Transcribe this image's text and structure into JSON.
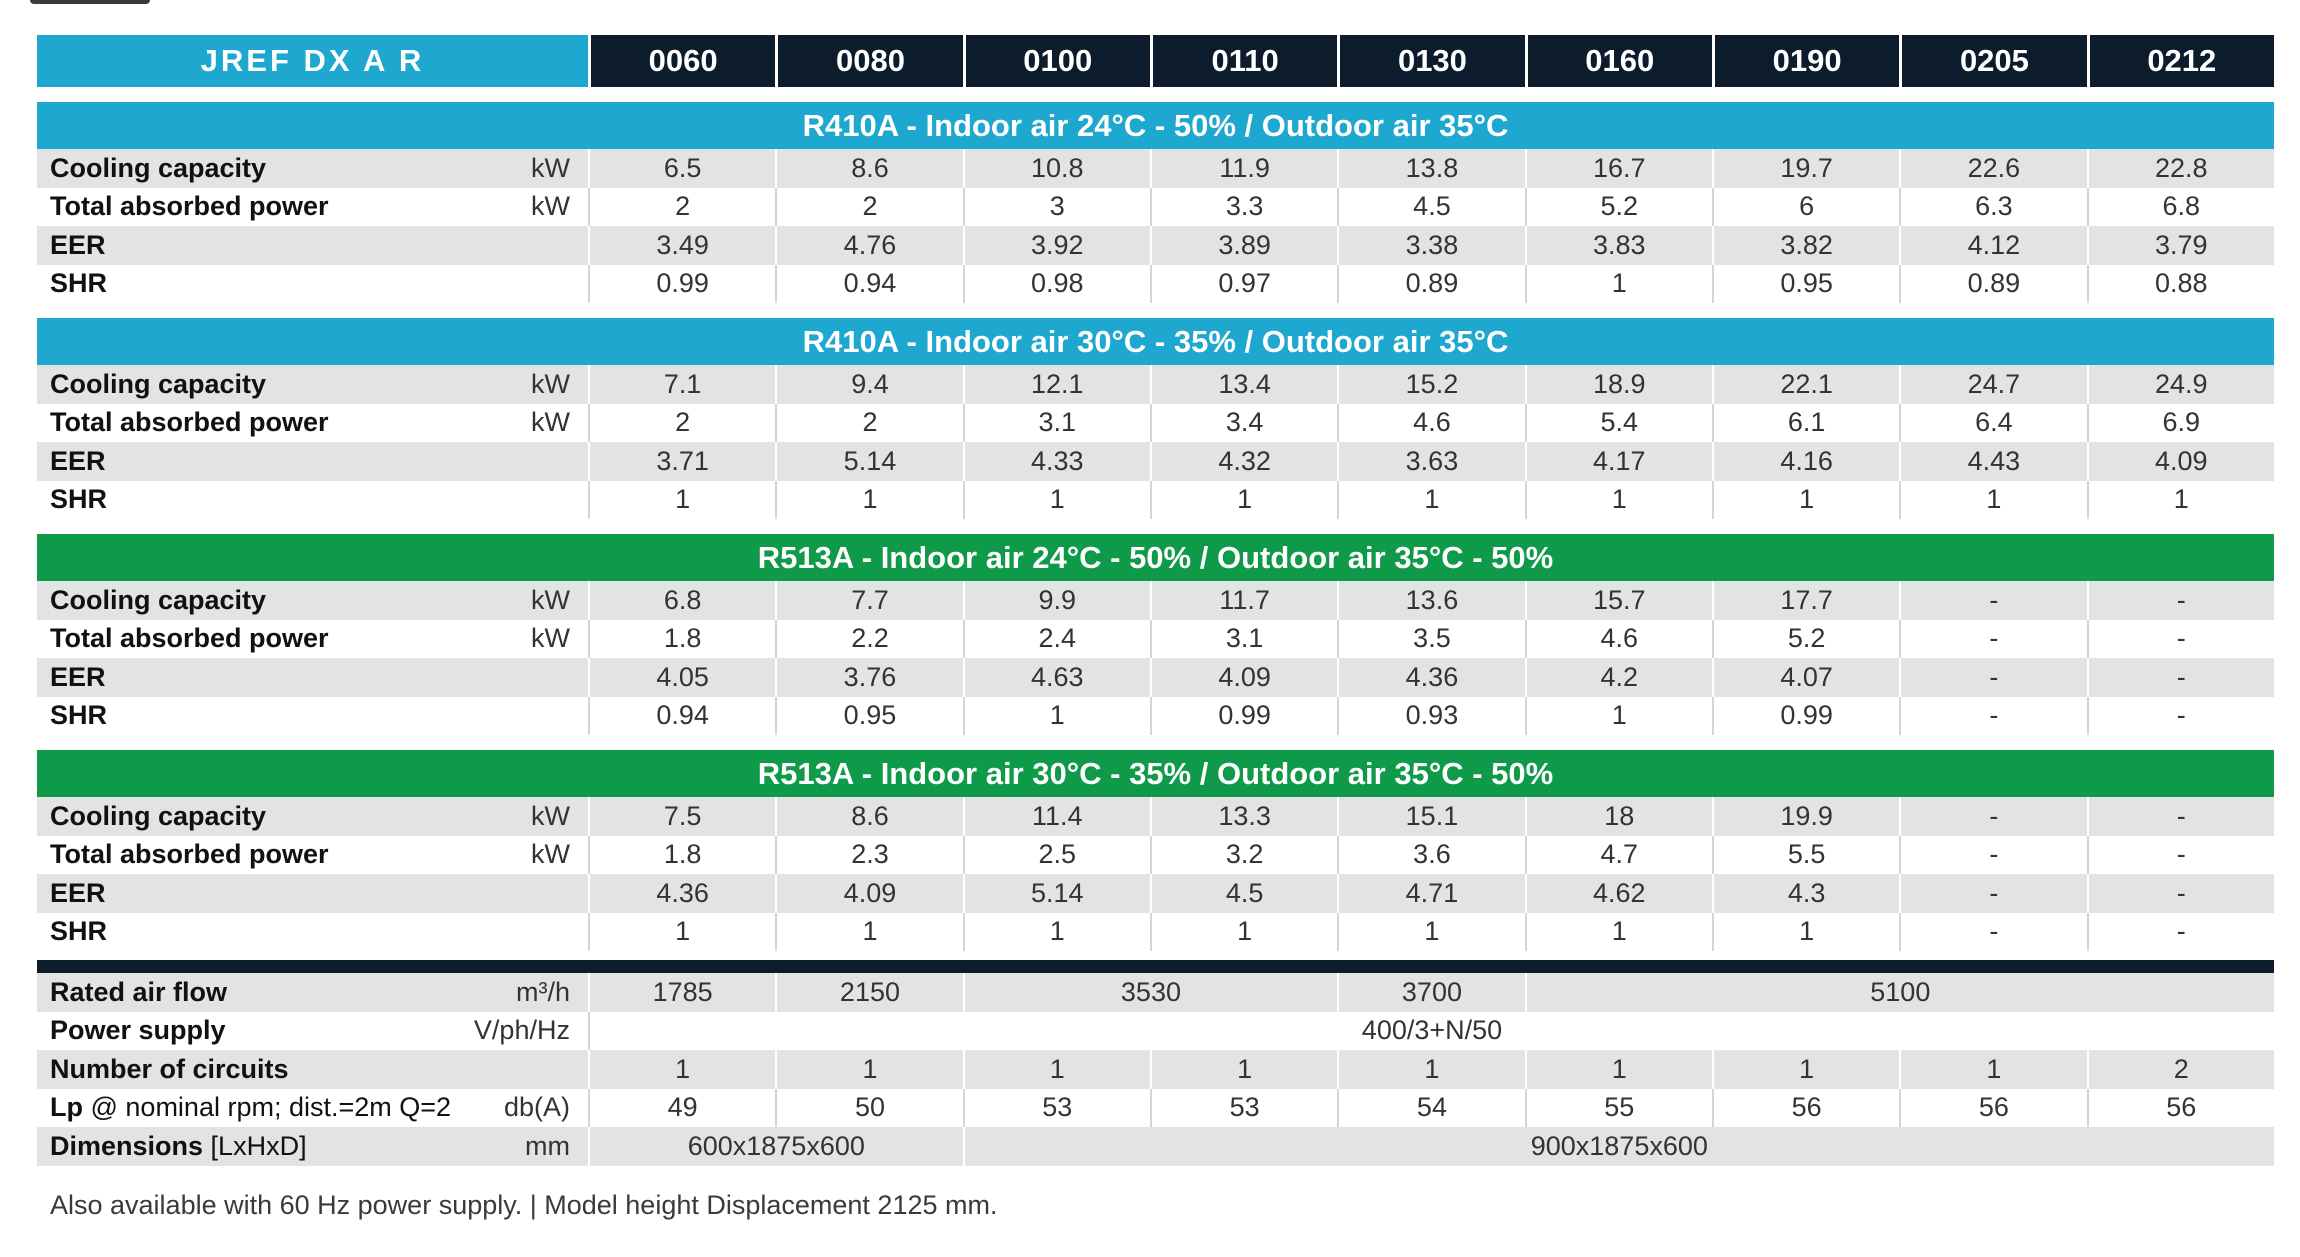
{
  "header": {
    "series_label": "JREF DX A R",
    "models": [
      "0060",
      "0080",
      "0100",
      "0110",
      "0130",
      "0160",
      "0190",
      "0205",
      "0212"
    ]
  },
  "sections": [
    {
      "title": "R410A - Indoor air 24°C -  50% / Outdoor air 35°C",
      "color": "#1ea7cf",
      "rows": [
        {
          "label": "Cooling capacity",
          "unit": "kW",
          "values": [
            "6.5",
            "8.6",
            "10.8",
            "11.9",
            "13.8",
            "16.7",
            "19.7",
            "22.6",
            "22.8"
          ]
        },
        {
          "label": "Total absorbed power",
          "unit": "kW",
          "values": [
            "2",
            "2",
            "3",
            "3.3",
            "4.5",
            "5.2",
            "6",
            "6.3",
            "6.8"
          ]
        },
        {
          "label": "EER",
          "unit": "",
          "values": [
            "3.49",
            "4.76",
            "3.92",
            "3.89",
            "3.38",
            "3.83",
            "3.82",
            "4.12",
            "3.79"
          ]
        },
        {
          "label": "SHR",
          "unit": "",
          "values": [
            "0.99",
            "0.94",
            "0.98",
            "0.97",
            "0.89",
            "1",
            "0.95",
            "0.89",
            "0.88"
          ]
        }
      ]
    },
    {
      "title": "R410A - Indoor air 30°C -  35% / Outdoor air 35°C",
      "color": "#1ea7cf",
      "rows": [
        {
          "label": "Cooling capacity",
          "unit": "kW",
          "values": [
            "7.1",
            "9.4",
            "12.1",
            "13.4",
            "15.2",
            "18.9",
            "22.1",
            "24.7",
            "24.9"
          ]
        },
        {
          "label": "Total absorbed power",
          "unit": "kW",
          "values": [
            "2",
            "2",
            "3.1",
            "3.4",
            "4.6",
            "5.4",
            "6.1",
            "6.4",
            "6.9"
          ]
        },
        {
          "label": "EER",
          "unit": "",
          "values": [
            "3.71",
            "5.14",
            "4.33",
            "4.32",
            "3.63",
            "4.17",
            "4.16",
            "4.43",
            "4.09"
          ]
        },
        {
          "label": "SHR",
          "unit": "",
          "values": [
            "1",
            "1",
            "1",
            "1",
            "1",
            "1",
            "1",
            "1",
            "1"
          ]
        }
      ]
    },
    {
      "title": "R513A - Indoor air 24°C - 50% / Outdoor air 35°C - 50%",
      "color": "#0e9a48",
      "rows": [
        {
          "label": "Cooling capacity",
          "unit": "kW",
          "values": [
            "6.8",
            "7.7",
            "9.9",
            "11.7",
            "13.6",
            "15.7",
            "17.7",
            "-",
            "-"
          ]
        },
        {
          "label": "Total absorbed power",
          "unit": "kW",
          "values": [
            "1.8",
            "2.2",
            "2.4",
            "3.1",
            "3.5",
            "4.6",
            "5.2",
            "-",
            "-"
          ]
        },
        {
          "label": "EER",
          "unit": "",
          "values": [
            "4.05",
            "3.76",
            "4.63",
            "4.09",
            "4.36",
            "4.2",
            "4.07",
            "-",
            "-"
          ]
        },
        {
          "label": "SHR",
          "unit": "",
          "values": [
            "0.94",
            "0.95",
            "1",
            "0.99",
            "0.93",
            "1",
            "0.99",
            "-",
            "-"
          ]
        }
      ]
    },
    {
      "title": "R513A - Indoor air 30°C - 35% / Outdoor air 35°C - 50%",
      "color": "#0e9a48",
      "rows": [
        {
          "label": "Cooling capacity",
          "unit": "kW",
          "values": [
            "7.5",
            "8.6",
            "11.4",
            "13.3",
            "15.1",
            "18",
            "19.9",
            "-",
            "-"
          ]
        },
        {
          "label": "Total absorbed power",
          "unit": "kW",
          "values": [
            "1.8",
            "2.3",
            "2.5",
            "3.2",
            "3.6",
            "4.7",
            "5.5",
            "-",
            "-"
          ]
        },
        {
          "label": "EER",
          "unit": "",
          "values": [
            "4.36",
            "4.09",
            "5.14",
            "4.5",
            "4.71",
            "4.62",
            "4.3",
            "-",
            "-"
          ]
        },
        {
          "label": "SHR",
          "unit": "",
          "values": [
            "1",
            "1",
            "1",
            "1",
            "1",
            "1",
            "1",
            "-",
            "-"
          ]
        }
      ]
    }
  ],
  "general": {
    "rated_air_flow": {
      "label": "Rated air flow",
      "unit": "m³/h",
      "values": [
        "1785",
        "2150",
        "3530",
        "3700",
        "5100"
      ]
    },
    "power_supply": {
      "label": "Power supply",
      "unit": "V/ph/Hz",
      "value": "400/3+N/50"
    },
    "circuits": {
      "label": "Number of circuits",
      "unit": "",
      "values": [
        "1",
        "1",
        "1",
        "1",
        "1",
        "1",
        "1",
        "1",
        "2"
      ]
    },
    "lp": {
      "label": "Lp",
      "label_extra": " @ nominal rpm; dist.=2m Q=2",
      "unit": "db(A)",
      "values": [
        "49",
        "50",
        "53",
        "53",
        "54",
        "55",
        "56",
        "56",
        "56"
      ]
    },
    "dimensions": {
      "label": "Dimensions",
      "label_extra": " [LxHxD]",
      "unit": "mm",
      "values": [
        "600x1875x600",
        "900x1875x600"
      ]
    }
  },
  "footnote": "Also available with 60 Hz power supply. | Model height Displacement 2125 mm."
}
